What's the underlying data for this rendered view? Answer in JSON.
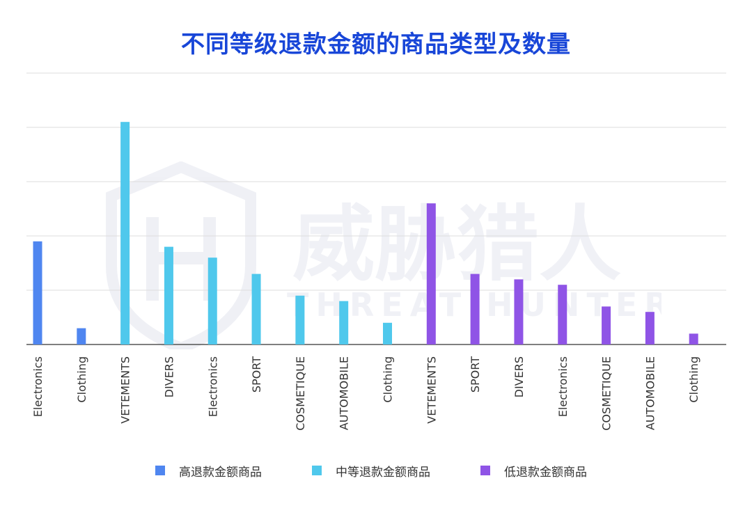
{
  "chart_data": {
    "type": "bar",
    "title": "不同等级退款金额的商品类型及数量",
    "ylim": [
      0,
      100
    ],
    "grid": true,
    "legend_position": "bottom",
    "series": [
      {
        "name": "高退款金额商品",
        "color": "#4f86f0",
        "categories": [
          "Electronics",
          "Clothing"
        ],
        "values": [
          38,
          6
        ]
      },
      {
        "name": "中等退款金额商品",
        "color": "#4fc8ec",
        "categories": [
          "VETEMENTS",
          "DIVERS",
          "Electronics",
          "SPORT",
          "COSMETIQUE",
          "AUTOMOBILE",
          "Clothing"
        ],
        "values": [
          82,
          36,
          32,
          26,
          18,
          16,
          8
        ]
      },
      {
        "name": "低退款金额商品",
        "color": "#8f54e6",
        "categories": [
          "VETEMENTS",
          "SPORT",
          "DIVERS",
          "Electronics",
          "COSMETIQUE",
          "AUTOMOBILE",
          "Clothing"
        ],
        "values": [
          52,
          26,
          24,
          22,
          14,
          12,
          4
        ]
      }
    ]
  },
  "watermark": {
    "text_cn": "威胁猎人",
    "text_en": "THREAT HUNTER"
  }
}
